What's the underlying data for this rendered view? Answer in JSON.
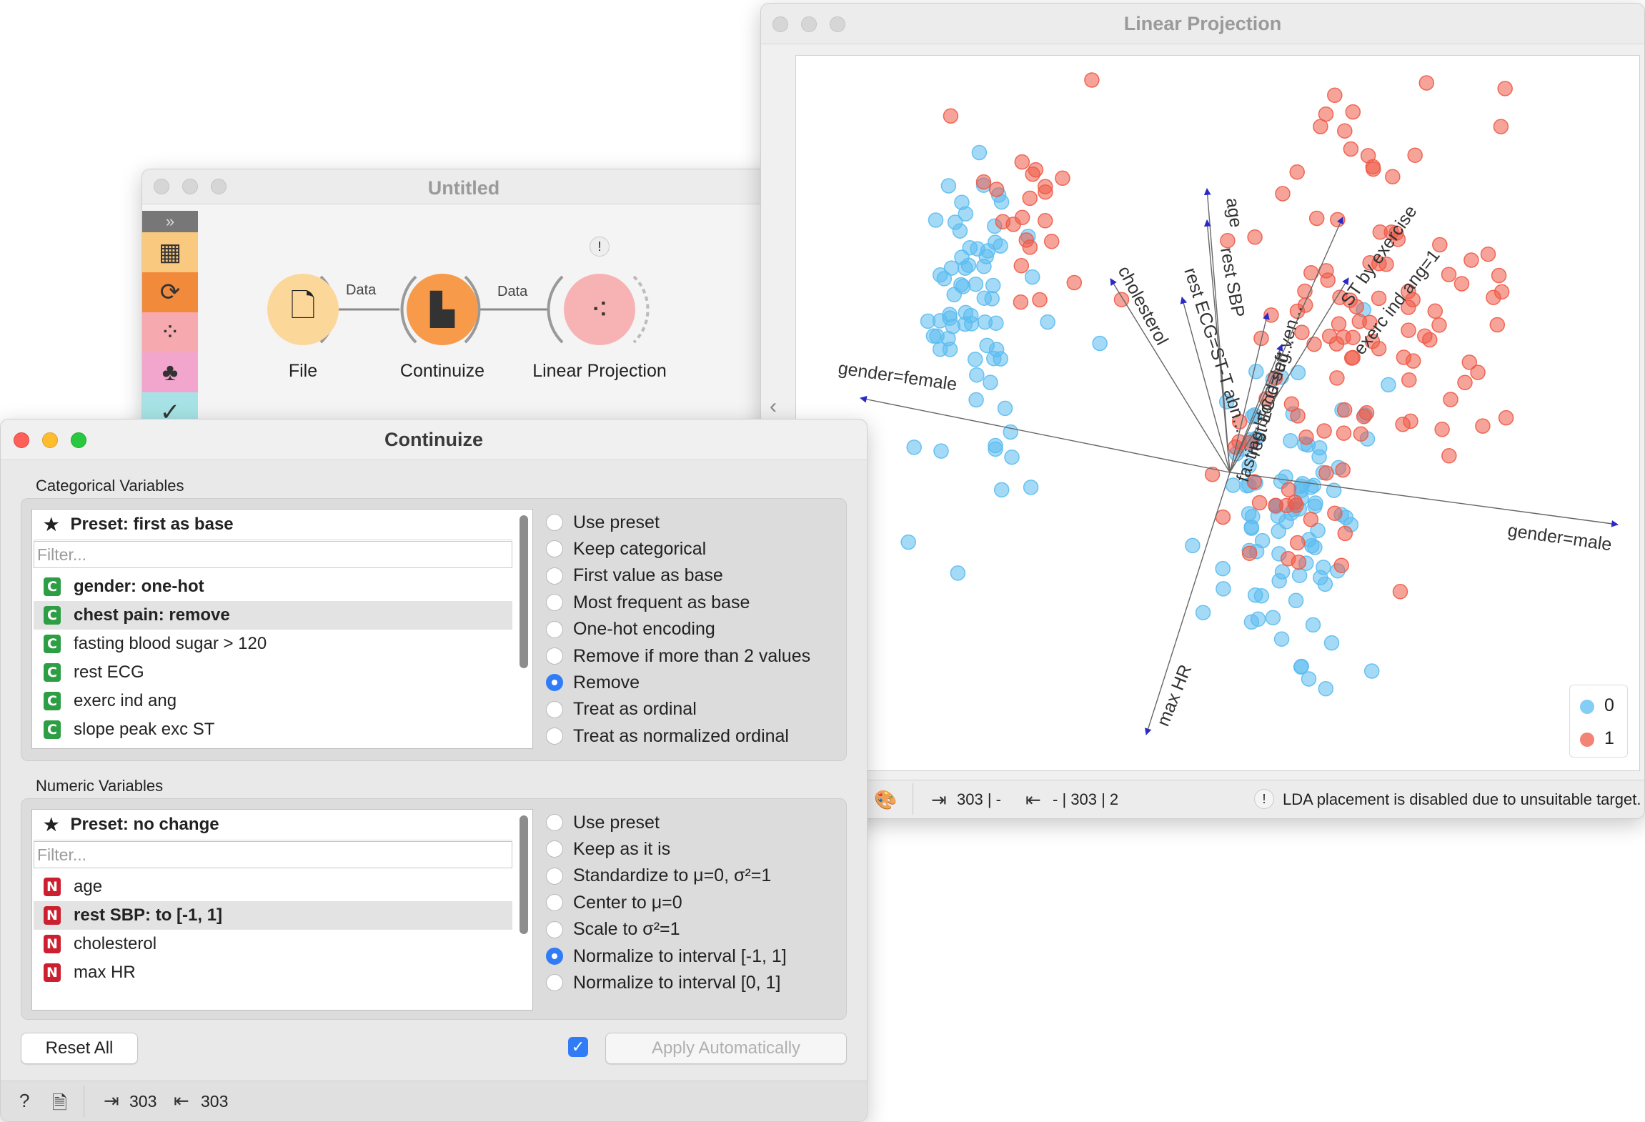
{
  "canvas_window": {
    "title": "Untitled",
    "nodes": [
      {
        "label": "File",
        "color": "#fcd79a"
      },
      {
        "label": "Continuize",
        "color": "#f79a4a"
      },
      {
        "label": "Linear Projection",
        "color": "#f7b3b3",
        "warning": "!"
      }
    ],
    "links": [
      {
        "label": "Data"
      },
      {
        "label": "Data"
      }
    ],
    "toolbox_icons": [
      "data-icon",
      "transform-icon",
      "visualize-icon",
      "model-icon",
      "evaluate-icon"
    ]
  },
  "lp_window": {
    "title": "Linear Projection",
    "status": {
      "input": "303 | -",
      "output": "- | 303 | 2",
      "warning": "!",
      "message": "LDA placement is disabled due to unsuitable target."
    },
    "legend": [
      {
        "label": "0",
        "color": "#5bbcf0"
      },
      {
        "label": "1",
        "color": "#ef5a47"
      }
    ],
    "axes": [
      {
        "label": "gender=female"
      },
      {
        "label": "gender=male"
      },
      {
        "label": "age"
      },
      {
        "label": "rest SBP"
      },
      {
        "label": "cholesterol"
      },
      {
        "label": "rest ECG=ST-T abn..."
      },
      {
        "label": "fasting blood sug..."
      },
      {
        "label": "rest ECG=left ven..."
      },
      {
        "label": "ST by exercise"
      },
      {
        "label": "exerc ind ang=1"
      },
      {
        "label": "max HR"
      }
    ]
  },
  "continuize_window": {
    "title": "Continuize",
    "categorical": {
      "title": "Categorical Variables",
      "preset": "Preset: first as base",
      "filter_placeholder": "Filter...",
      "variables": [
        {
          "badge": "C",
          "label": "gender: one-hot",
          "bold": true,
          "selected": false
        },
        {
          "badge": "C",
          "label": "chest pain: remove",
          "bold": true,
          "selected": true
        },
        {
          "badge": "C",
          "label": "fasting blood sugar > 120",
          "bold": false,
          "selected": false
        },
        {
          "badge": "C",
          "label": "rest ECG",
          "bold": false,
          "selected": false
        },
        {
          "badge": "C",
          "label": "exerc ind ang",
          "bold": false,
          "selected": false
        },
        {
          "badge": "C",
          "label": "slope peak exc ST",
          "bold": false,
          "selected": false
        }
      ],
      "options": [
        {
          "label": "Use preset",
          "checked": false
        },
        {
          "label": "Keep categorical",
          "checked": false
        },
        {
          "label": "First value as base",
          "checked": false
        },
        {
          "label": "Most frequent as base",
          "checked": false
        },
        {
          "label": "One-hot encoding",
          "checked": false
        },
        {
          "label": "Remove if more than 2 values",
          "checked": false
        },
        {
          "label": "Remove",
          "checked": true
        },
        {
          "label": "Treat as ordinal",
          "checked": false
        },
        {
          "label": "Treat as normalized ordinal",
          "checked": false
        }
      ]
    },
    "numeric": {
      "title": "Numeric Variables",
      "preset": "Preset: no change",
      "filter_placeholder": "Filter...",
      "variables": [
        {
          "badge": "N",
          "label": "age",
          "bold": false,
          "selected": false
        },
        {
          "badge": "N",
          "label": "rest SBP: to [-1, 1]",
          "bold": true,
          "selected": true
        },
        {
          "badge": "N",
          "label": "cholesterol",
          "bold": false,
          "selected": false
        },
        {
          "badge": "N",
          "label": "max HR",
          "bold": false,
          "selected": false
        }
      ],
      "options": [
        {
          "label": "Use preset",
          "checked": false
        },
        {
          "label": "Keep as it is",
          "checked": false
        },
        {
          "label": "Standardize to μ=0, σ²=1",
          "checked": false
        },
        {
          "label": "Center to μ=0",
          "checked": false
        },
        {
          "label": "Scale to σ²=1",
          "checked": false
        },
        {
          "label": "Normalize to interval [-1, 1]",
          "checked": true
        },
        {
          "label": "Normalize to interval [0, 1]",
          "checked": false
        }
      ]
    },
    "reset_label": "Reset All",
    "apply_label": "Apply Automatically",
    "apply_checked": true,
    "status": {
      "input": "303",
      "output": "303"
    }
  }
}
